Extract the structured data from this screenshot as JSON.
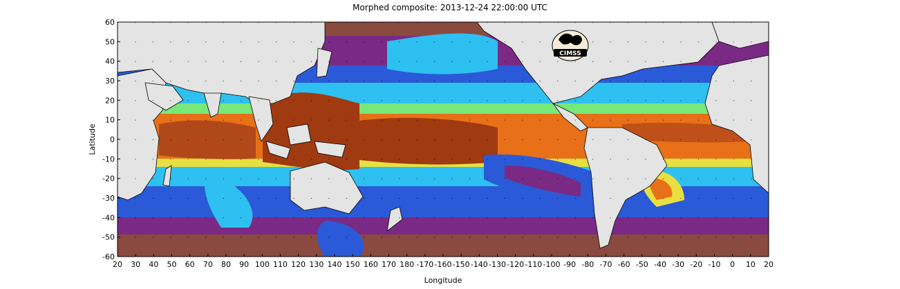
{
  "title": "Morphed composite: 2013-12-24 22:00:00 UTC",
  "axes": {
    "xlabel": "Longitude",
    "ylabel": "Latitude",
    "x_ticks": [
      "20",
      "30",
      "40",
      "50",
      "60",
      "70",
      "80",
      "90",
      "100",
      "110",
      "120",
      "130",
      "140",
      "150",
      "160",
      "170",
      "180",
      "-170",
      "-160",
      "-150",
      "-140",
      "-130",
      "-120",
      "-110",
      "-100",
      "-90",
      "-80",
      "-70",
      "-60",
      "-50",
      "-40",
      "-30",
      "-20",
      "-10",
      "0",
      "10",
      "20"
    ],
    "y_ticks": [
      "60",
      "50",
      "40",
      "30",
      "20",
      "10",
      "0",
      "-10",
      "-20",
      "-30",
      "-40",
      "-50",
      "-60"
    ]
  },
  "logo": {
    "text": "CIMSS"
  },
  "colors": {
    "land": "#e6e6e6",
    "dry": "#8c4a3c",
    "purple": "#7a2a8a",
    "blue": "#2a6ae0",
    "cyan": "#2ec8f0",
    "green": "#7ef07a",
    "yellow": "#f0e640",
    "orange": "#e86a18",
    "brown": "#9a3a10"
  }
}
